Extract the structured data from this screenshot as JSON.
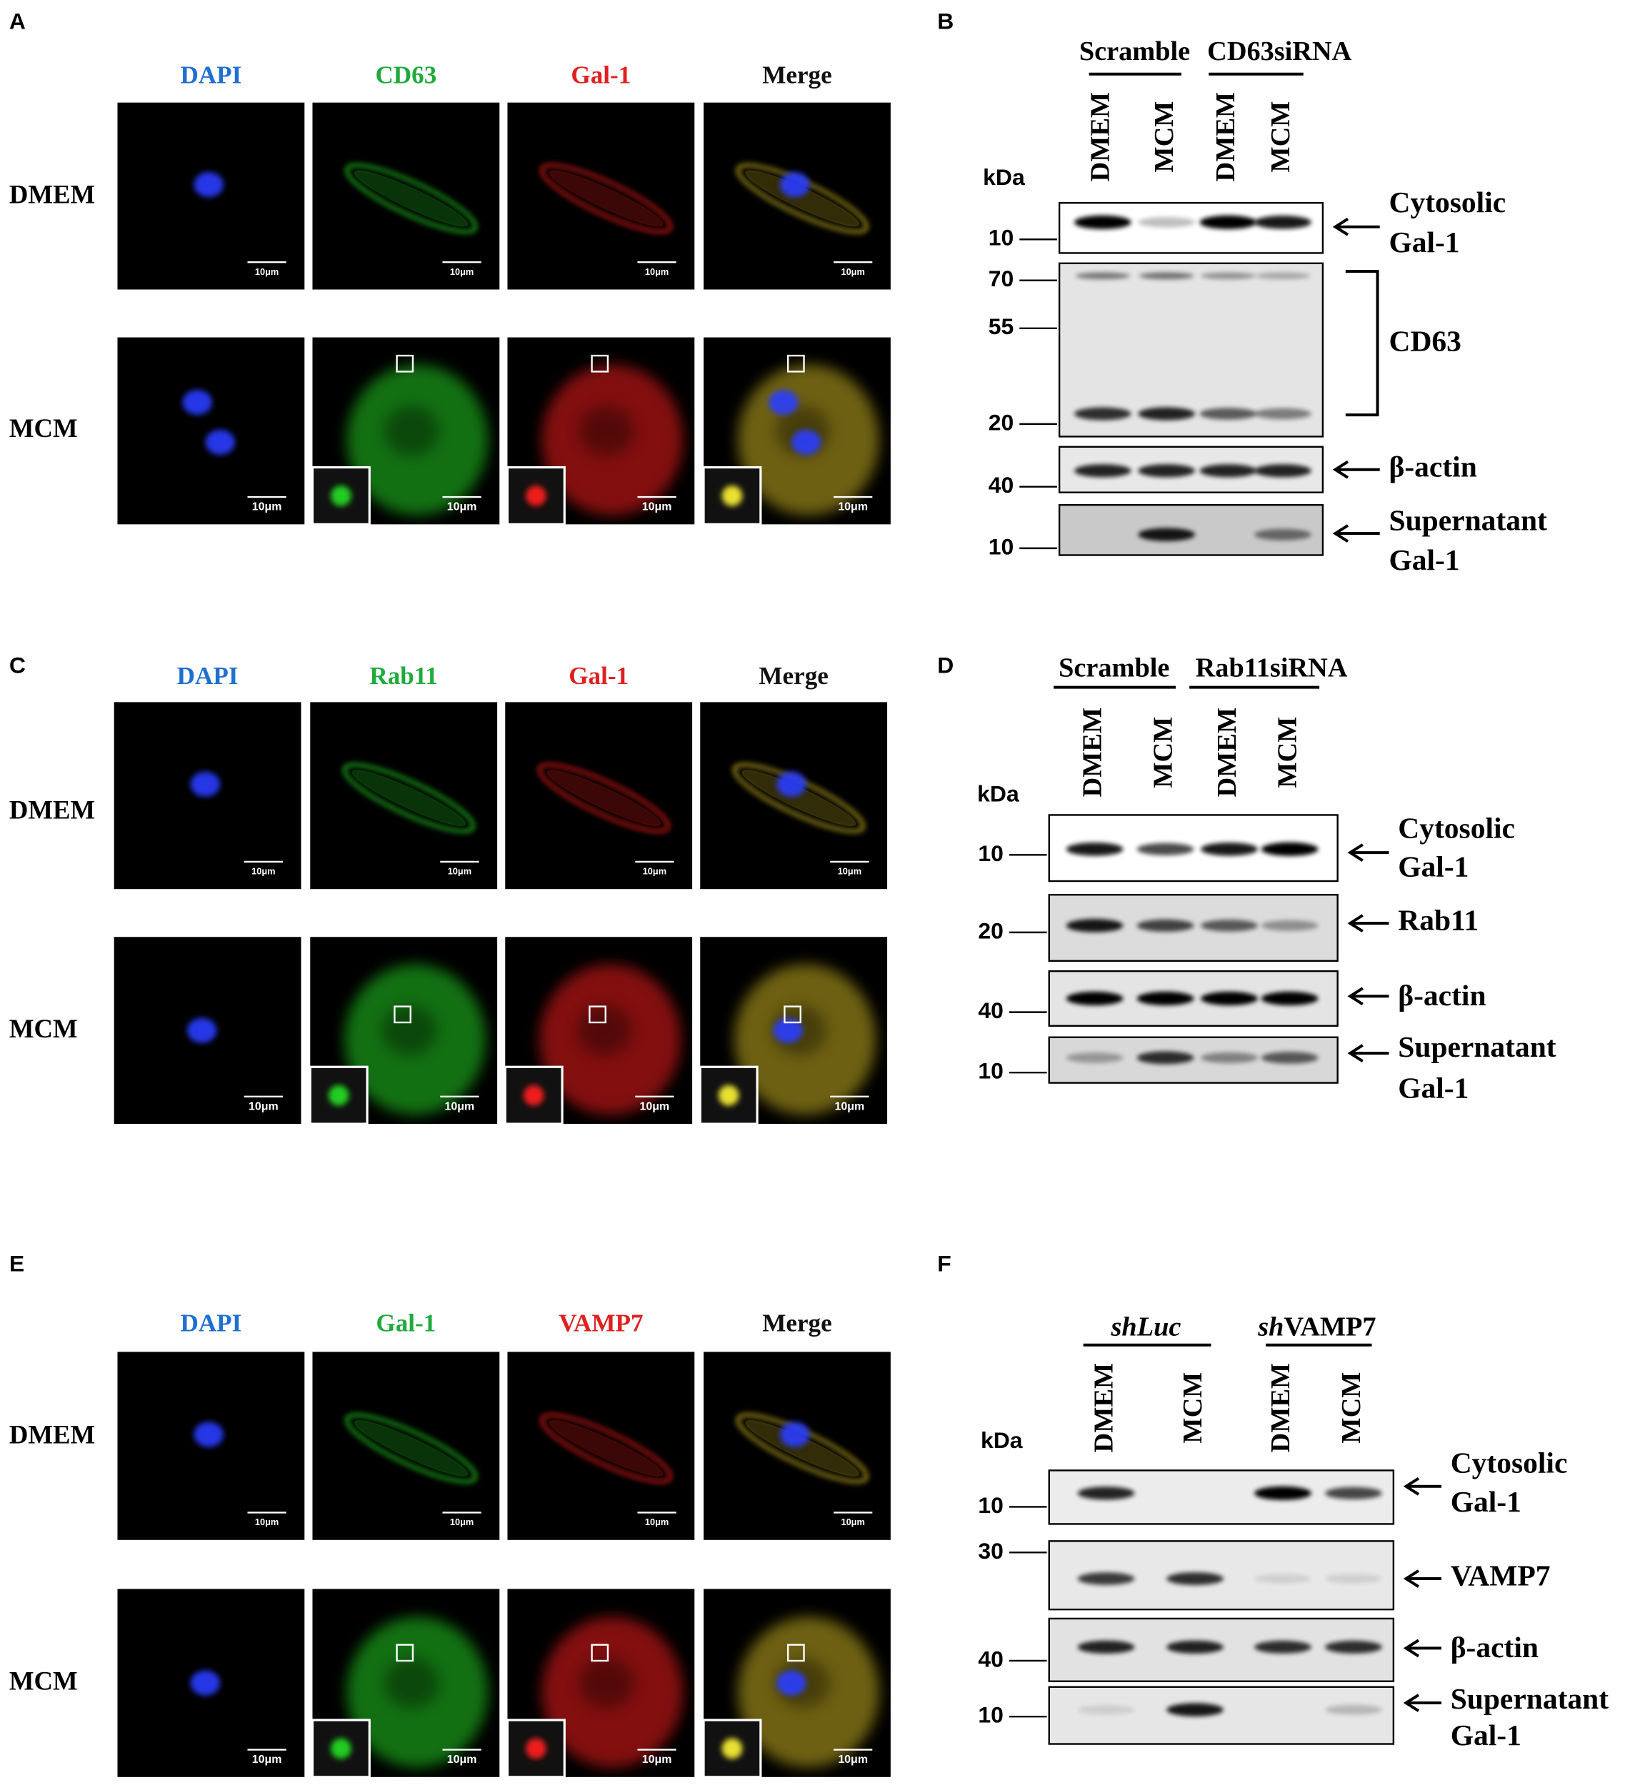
{
  "figures": [
    {
      "letter": "A",
      "channels": [
        "DAPI",
        "CD63",
        "Gal-1",
        "Merge"
      ],
      "rows": [
        "DMEM",
        "MCM"
      ],
      "scale_bar": "10μm"
    },
    {
      "letter": "C",
      "channels": [
        "DAPI",
        "Rab11",
        "Gal-1",
        "Merge"
      ],
      "rows": [
        "DMEM",
        "MCM"
      ],
      "scale_bar": "10μm"
    },
    {
      "letter": "E",
      "channels": [
        "DAPI",
        "Gal-1",
        "VAMP7",
        "Merge"
      ],
      "rows": [
        "DMEM",
        "MCM"
      ],
      "scale_bar": "10μm"
    }
  ],
  "blots": [
    {
      "letter": "B",
      "groups": [
        [
          {
            "text": "Scramble"
          }
        ],
        [
          {
            "text": "CD63siRNA"
          }
        ]
      ],
      "lanes": [
        "DMEM",
        "MCM",
        "DMEM",
        "MCM"
      ],
      "unit": "kDa",
      "strips": [
        {
          "markers": [
            10
          ],
          "label": [
            "Cytosolic",
            "Gal-1"
          ]
        },
        {
          "markers": [
            70,
            55,
            20
          ],
          "label": [
            "CD63"
          ]
        },
        {
          "markers": [
            40
          ],
          "label": [
            "β-actin"
          ]
        },
        {
          "markers": [
            10
          ],
          "label": [
            "Supernatant",
            "Gal-1"
          ]
        }
      ]
    },
    {
      "letter": "D",
      "groups": [
        [
          {
            "text": "Scramble"
          }
        ],
        [
          {
            "text": "Rab11siRNA"
          }
        ]
      ],
      "lanes": [
        "DMEM",
        "MCM",
        "DMEM",
        "MCM"
      ],
      "unit": "kDa",
      "strips": [
        {
          "markers": [
            10
          ],
          "label": [
            "Cytosolic",
            "Gal-1"
          ]
        },
        {
          "markers": [
            20
          ],
          "label": [
            "Rab11"
          ]
        },
        {
          "markers": [
            40
          ],
          "label": [
            "β-actin"
          ]
        },
        {
          "markers": [
            10
          ],
          "label": [
            "Supernatant",
            "Gal-1"
          ]
        }
      ]
    },
    {
      "letter": "F",
      "groups": [
        [
          {
            "text": "shLuc",
            "italic": true
          }
        ],
        [
          {
            "text": "sh",
            "italic": true
          },
          {
            "text": "VAMP7"
          }
        ]
      ],
      "lanes": [
        "DMEM",
        "MCM",
        "DMEM",
        "MCM"
      ],
      "unit": "kDa",
      "strips": [
        {
          "markers": [
            10
          ],
          "label": [
            "Cytosolic",
            "Gal-1"
          ]
        },
        {
          "markers": [
            30
          ],
          "label": [
            "VAMP7"
          ]
        },
        {
          "markers": [
            40
          ],
          "label": [
            "β-actin"
          ]
        },
        {
          "markers": [
            10
          ],
          "label": [
            "Supernatant",
            "Gal-1"
          ]
        }
      ]
    }
  ]
}
